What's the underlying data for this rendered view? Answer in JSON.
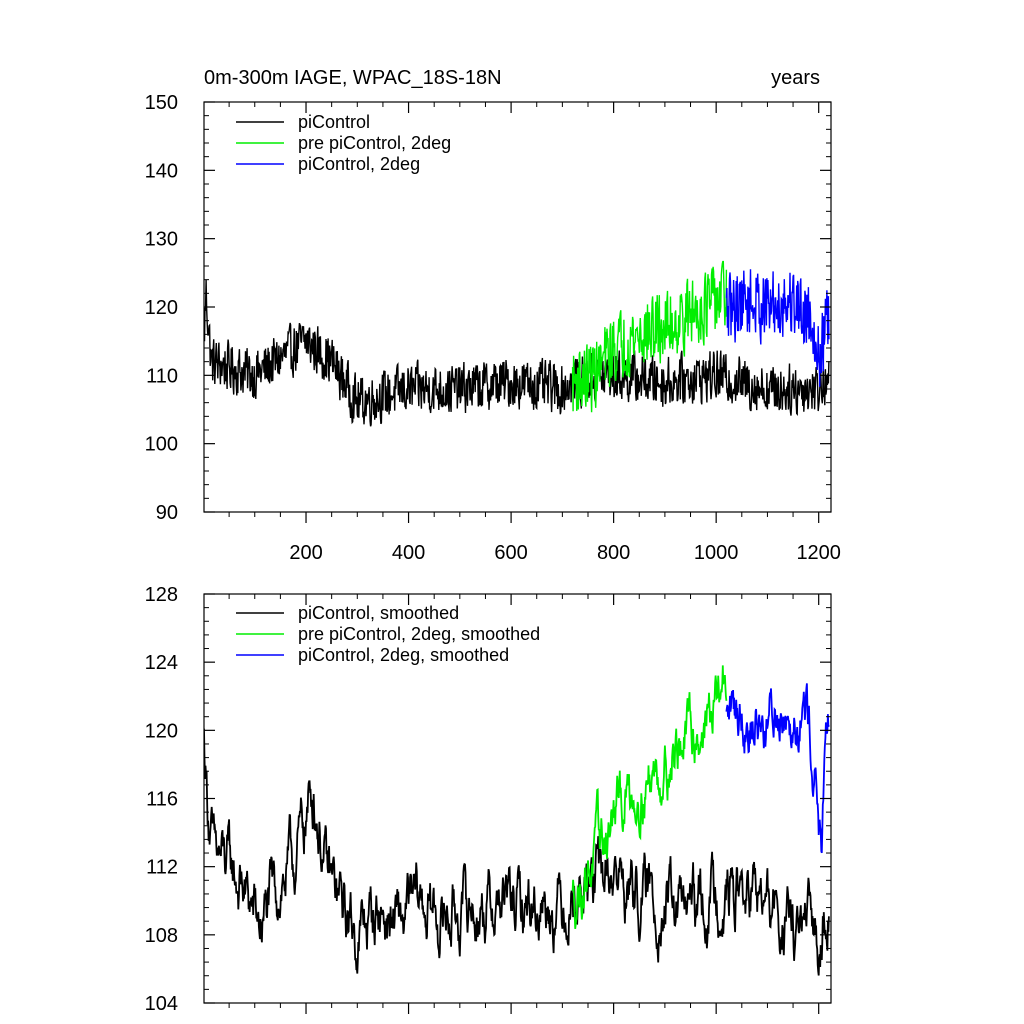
{
  "chart_data": [
    {
      "type": "line",
      "title": "0m-300m IAGE, WPAC_18S-18N",
      "units": "years",
      "xlabel": "",
      "ylabel": "",
      "xlim": [
        1,
        1224
      ],
      "ylim": [
        90,
        150
      ],
      "x_ticks": [
        200,
        400,
        600,
        800,
        1000,
        1200
      ],
      "x_tick_labels": [
        "200",
        "400",
        "600",
        "800",
        "1000",
        "1200"
      ],
      "y_ticks": [
        90,
        100,
        110,
        120,
        130,
        140,
        150
      ],
      "y_tick_labels": [
        "90",
        "100",
        "110",
        "120",
        "130",
        "140",
        "150"
      ],
      "legend_position": "top-left",
      "series": [
        {
          "name": "piControl",
          "color": "#000000",
          "x_start": 1,
          "x_end": 1220,
          "base": [
            [
              1,
              115
            ],
            [
              5,
              122
            ],
            [
              15,
              112
            ],
            [
              100,
              110
            ],
            [
              200,
              115
            ],
            [
              250,
              112
            ],
            [
              300,
              106
            ],
            [
              400,
              108
            ],
            [
              500,
              108
            ],
            [
              600,
              109
            ],
            [
              700,
              108
            ],
            [
              720,
              109
            ],
            [
              800,
              110
            ],
            [
              900,
              109
            ],
            [
              1000,
              110
            ],
            [
              1100,
              108
            ],
            [
              1200,
              108
            ],
            [
              1220,
              110
            ]
          ],
          "amplitude": 5
        },
        {
          "name": "pre piControl, 2deg",
          "color": "#00ee00",
          "x_start": 720,
          "x_end": 1020,
          "base": [
            [
              720,
              109
            ],
            [
              760,
              110
            ],
            [
              800,
              114
            ],
            [
              850,
              116
            ],
            [
              900,
              117
            ],
            [
              950,
              119
            ],
            [
              1000,
              121
            ],
            [
              1020,
              122
            ]
          ],
          "amplitude": 7
        },
        {
          "name": "piControl, 2deg",
          "color": "#0000ff",
          "x_start": 1020,
          "x_end": 1220,
          "base": [
            [
              1020,
              119
            ],
            [
              1050,
              121
            ],
            [
              1100,
              120
            ],
            [
              1150,
              121
            ],
            [
              1190,
              118
            ],
            [
              1200,
              112
            ],
            [
              1210,
              116
            ],
            [
              1220,
              118
            ]
          ],
          "amplitude": 7
        }
      ]
    },
    {
      "type": "line",
      "title": "",
      "xlabel": "",
      "ylabel": "",
      "xlim": [
        1,
        1224
      ],
      "ylim": [
        104,
        128
      ],
      "x_ticks": [
        200,
        400,
        600,
        800,
        1000,
        1200
      ],
      "x_tick_labels": [],
      "y_ticks": [
        104,
        108,
        112,
        116,
        120,
        124,
        128
      ],
      "y_tick_labels": [
        "104",
        "108",
        "112",
        "116",
        "120",
        "124",
        "128"
      ],
      "legend_position": "top-left",
      "series": [
        {
          "name": "piControl, smoothed",
          "color": "#000000",
          "x_start": 1,
          "x_end": 1220,
          "base": [
            [
              1,
              119.5
            ],
            [
              8,
              116
            ],
            [
              20,
              112.5
            ],
            [
              50,
              112
            ],
            [
              80,
              110.5
            ],
            [
              110,
              108.5
            ],
            [
              140,
              110.5
            ],
            [
              180,
              112.5
            ],
            [
              200,
              115
            ],
            [
              215,
              116.5
            ],
            [
              240,
              111.5
            ],
            [
              280,
              109
            ],
            [
              300,
              108
            ],
            [
              340,
              109.5
            ],
            [
              380,
              108.5
            ],
            [
              420,
              110
            ],
            [
              460,
              109
            ],
            [
              500,
              109.5
            ],
            [
              540,
              109.5
            ],
            [
              580,
              110
            ],
            [
              620,
              109.5
            ],
            [
              660,
              110
            ],
            [
              700,
              110
            ],
            [
              720,
              110.5
            ],
            [
              760,
              111
            ],
            [
              800,
              111.5
            ],
            [
              840,
              110.5
            ],
            [
              880,
              110
            ],
            [
              920,
              109.5
            ],
            [
              960,
              109.5
            ],
            [
              1000,
              110.5
            ],
            [
              1040,
              110.5
            ],
            [
              1080,
              110
            ],
            [
              1120,
              109
            ],
            [
              1160,
              108
            ],
            [
              1200,
              108
            ],
            [
              1220,
              111
            ]
          ],
          "amplitude": 2.4
        },
        {
          "name": "pre piControl, 2deg, smoothed",
          "color": "#00ee00",
          "x_start": 720,
          "x_end": 1020,
          "base": [
            [
              720,
              110
            ],
            [
              750,
              112
            ],
            [
              780,
              113.5
            ],
            [
              820,
              116
            ],
            [
              860,
              117
            ],
            [
              900,
              118
            ],
            [
              940,
              119.5
            ],
            [
              980,
              120.5
            ],
            [
              1000,
              121.5
            ],
            [
              1015,
              123
            ],
            [
              1020,
              123
            ]
          ],
          "amplitude": 2.2
        },
        {
          "name": "piControl, 2deg, smoothed",
          "color": "#0000ff",
          "x_start": 1020,
          "x_end": 1220,
          "base": [
            [
              1020,
              120.5
            ],
            [
              1040,
              121.5
            ],
            [
              1070,
              120.5
            ],
            [
              1100,
              120.5
            ],
            [
              1130,
              121.5
            ],
            [
              1160,
              121.5
            ],
            [
              1180,
              121
            ],
            [
              1195,
              117
            ],
            [
              1205,
              113
            ],
            [
              1215,
              118
            ],
            [
              1220,
              120.5
            ]
          ],
          "amplitude": 2.2
        }
      ]
    }
  ]
}
